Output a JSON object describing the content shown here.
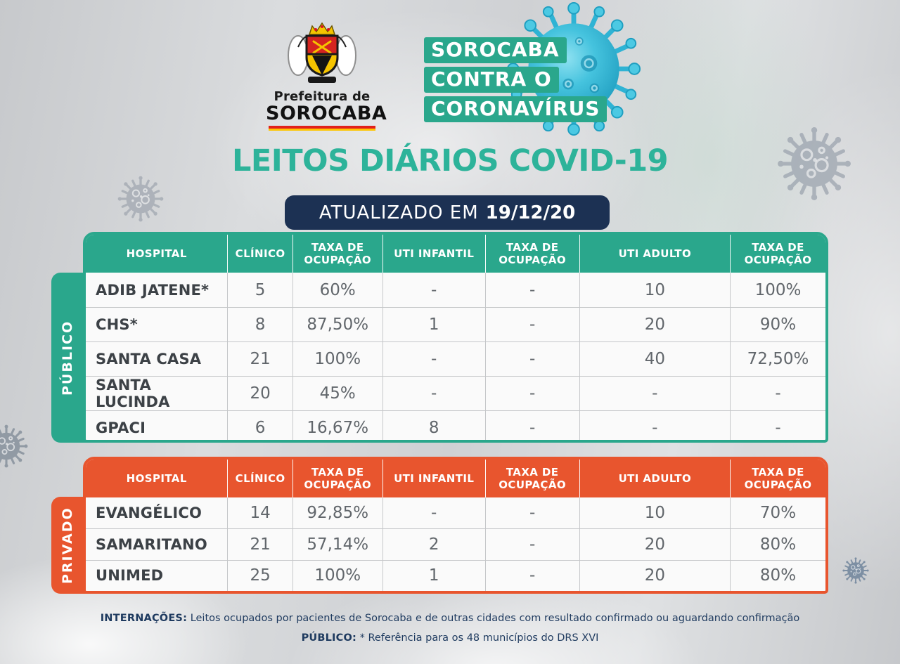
{
  "page": {
    "title": "LEITOS DIÁRIOS COVID-19",
    "updated_label": "ATUALIZADO EM",
    "updated_date": "19/12/20"
  },
  "header": {
    "logo": {
      "line1": "Prefeitura de",
      "line2": "SOROCABA"
    },
    "campaign": {
      "lines": [
        "SOROCABA",
        "CONTRA O",
        "CORONAVÍRUS"
      ]
    }
  },
  "columns": [
    "HOSPITAL",
    "CLÍNICO",
    "TAXA DE OCUPAÇÃO",
    "UTI INFANTIL",
    "TAXA DE OCUPAÇÃO",
    "UTI ADULTO",
    "TAXA DE OCUPAÇÃO"
  ],
  "tables": [
    {
      "group": "PÚBLICO",
      "accent": "#2aa78c",
      "rows": [
        [
          "ADIB JATENE*",
          "5",
          "60%",
          "-",
          "-",
          "10",
          "100%"
        ],
        [
          "CHS*",
          "8",
          "87,50%",
          "1",
          "-",
          "20",
          "90%"
        ],
        [
          "SANTA CASA",
          "21",
          "100%",
          "-",
          "-",
          "40",
          "72,50%"
        ],
        [
          "SANTA LUCINDA",
          "20",
          "45%",
          "-",
          "-",
          "-",
          "-"
        ],
        [
          "GPACI",
          "6",
          "16,67%",
          "8",
          "-",
          "-",
          "-"
        ]
      ]
    },
    {
      "group": "PRIVADO",
      "accent": "#e8552e",
      "rows": [
        [
          "EVANGÉLICO",
          "14",
          "92,85%",
          "-",
          "-",
          "10",
          "70%"
        ],
        [
          "SAMARITANO",
          "21",
          "57,14%",
          "2",
          "-",
          "20",
          "80%"
        ],
        [
          "UNIMED",
          "25",
          "100%",
          "1",
          "-",
          "20",
          "80%"
        ]
      ]
    }
  ],
  "footer": {
    "line1_label": "INTERNAÇÕES:",
    "line1_text": "Leitos ocupados por pacientes de Sorocaba e de outras cidades com resultado confirmado ou aguardando confirmação",
    "line2_label": "PÚBLICO:",
    "line2_text": "* Referência para os 48 municípios do DRS XVI"
  },
  "colors": {
    "teal": "#2aa78c",
    "orange": "#e8552e",
    "navy": "#1c3153",
    "title_teal": "#2db39a"
  }
}
